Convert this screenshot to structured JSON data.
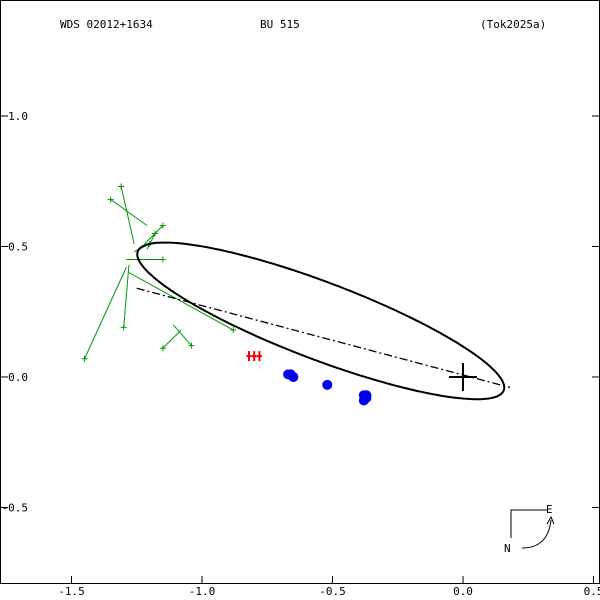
{
  "header": {
    "wds_id": "WDS 02012+1634",
    "discoverer": "BU  515",
    "reference": "(Tok2025a)"
  },
  "compass": {
    "east_label": "E",
    "north_label": "N"
  },
  "colors": {
    "orbit": "#000000",
    "observations_micrometer": "#009900",
    "observations_speckle": "#0000ee",
    "first_obs_marker": "#ee0000",
    "frame": "#000000"
  },
  "chart_data": {
    "type": "scatter",
    "title": "",
    "xlabel": "",
    "ylabel": "",
    "xlim": [
      -1.75,
      0.5
    ],
    "ylim": [
      -0.8,
      1.4
    ],
    "x_ticks": [
      -1.5,
      -1.0,
      -0.5,
      0.0,
      0.5
    ],
    "x_tick_labels": [
      "-1.5",
      "-1.0",
      "-0.5",
      "0.0",
      "0.5"
    ],
    "y_ticks": [
      1.0,
      0.5,
      0.0,
      -0.5
    ],
    "y_tick_labels": [
      "1.0",
      "0.5",
      "0.0",
      "-0.5"
    ],
    "grid": false,
    "primary_star": [
      0.0,
      0.0
    ],
    "orbit_ellipse": {
      "center": [
        -0.545,
        0.215
      ],
      "semi_major": 0.75,
      "semi_minor": 0.148,
      "rotation_deg": -20.8
    },
    "line_of_nodes": [
      [
        -1.25,
        0.34
      ],
      [
        0.18,
        -0.04
      ]
    ],
    "micrometer_residuals": [
      {
        "obs": [
          -1.35,
          0.68
        ],
        "pred": [
          -1.21,
          0.58
        ]
      },
      {
        "obs": [
          -1.31,
          0.73
        ],
        "pred": [
          -1.26,
          0.51
        ]
      },
      {
        "obs": [
          -1.18,
          0.55
        ],
        "pred": [
          -1.21,
          0.49
        ]
      },
      {
        "obs": [
          -1.15,
          0.58
        ],
        "pred": [
          -1.22,
          0.51
        ]
      },
      {
        "obs": [
          -1.2,
          0.51
        ],
        "pred": [
          -1.26,
          0.48
        ]
      },
      {
        "obs": [
          -1.15,
          0.45
        ],
        "pred": [
          -1.29,
          0.45
        ]
      },
      {
        "obs": [
          -0.88,
          0.18
        ],
        "pred": [
          -1.28,
          0.4
        ]
      },
      {
        "obs": [
          -1.3,
          0.19
        ],
        "pred": [
          -1.28,
          0.43
        ]
      },
      {
        "obs": [
          -1.45,
          0.07
        ],
        "pred": [
          -1.29,
          0.42
        ]
      },
      {
        "obs": [
          -1.04,
          0.12
        ],
        "pred": [
          -1.11,
          0.2
        ]
      },
      {
        "obs": [
          -1.15,
          0.11
        ],
        "pred": [
          -1.08,
          0.18
        ]
      }
    ],
    "speckle_points": [
      [
        -0.67,
        0.01
      ],
      [
        -0.66,
        0.01
      ],
      [
        -0.65,
        0.0
      ],
      [
        -0.52,
        -0.03
      ],
      [
        -0.38,
        -0.07
      ],
      [
        -0.37,
        -0.08
      ],
      [
        -0.38,
        -0.09
      ],
      [
        -0.37,
        -0.07
      ]
    ],
    "first_observation_marks": [
      [
        -0.82,
        0.08
      ],
      [
        -0.8,
        0.08
      ],
      [
        -0.78,
        0.08
      ]
    ]
  }
}
